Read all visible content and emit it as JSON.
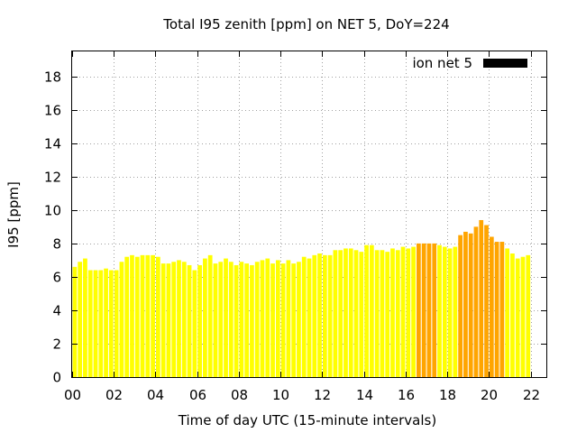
{
  "chart_data": {
    "type": "bar",
    "title": "Total I95 zenith [ppm] on NET 5, DoY=224",
    "xlabel": "Time of day UTC (15-minute intervals)",
    "ylabel": "I95 [ppm]",
    "xlim": [
      0,
      22.75
    ],
    "ylim": [
      0,
      19.5
    ],
    "x_ticks": [
      "00",
      "02",
      "04",
      "06",
      "08",
      "10",
      "12",
      "14",
      "16",
      "18",
      "20",
      "22"
    ],
    "y_ticks": [
      "0",
      "2",
      "4",
      "6",
      "8",
      "10",
      "12",
      "14",
      "16",
      "18"
    ],
    "grid": true,
    "legend_position": "top-right",
    "series": [
      {
        "name": "ion net 5",
        "legend_color": "#000000",
        "interval_hours": 0.25,
        "values": [
          6.6,
          6.9,
          7.1,
          6.4,
          6.4,
          6.4,
          6.5,
          6.4,
          6.4,
          6.9,
          7.2,
          7.3,
          7.2,
          7.3,
          7.3,
          7.3,
          7.2,
          6.8,
          6.8,
          6.9,
          7.0,
          6.9,
          6.7,
          6.4,
          6.7,
          7.1,
          7.3,
          6.8,
          6.9,
          7.1,
          6.9,
          6.7,
          6.9,
          6.8,
          6.7,
          6.9,
          7.0,
          7.1,
          6.8,
          7.0,
          6.8,
          7.0,
          6.8,
          6.9,
          7.2,
          7.1,
          7.3,
          7.4,
          7.3,
          7.3,
          7.6,
          7.6,
          7.7,
          7.7,
          7.6,
          7.5,
          7.9,
          7.9,
          7.6,
          7.6,
          7.5,
          7.7,
          7.6,
          7.8,
          7.7,
          7.8,
          8.0,
          8.0,
          8.0,
          8.0,
          7.9,
          7.8,
          7.7,
          7.8,
          8.5,
          8.7,
          8.6,
          9.0,
          9.4,
          9.1,
          8.4,
          8.1,
          8.1,
          7.7,
          7.4,
          7.1,
          7.2,
          7.3
        ]
      }
    ],
    "colors": {
      "normal": "#ffff00",
      "elevated": "#ffa500",
      "elevated_threshold": 8.0,
      "bar_outline": "#e0e000"
    }
  }
}
